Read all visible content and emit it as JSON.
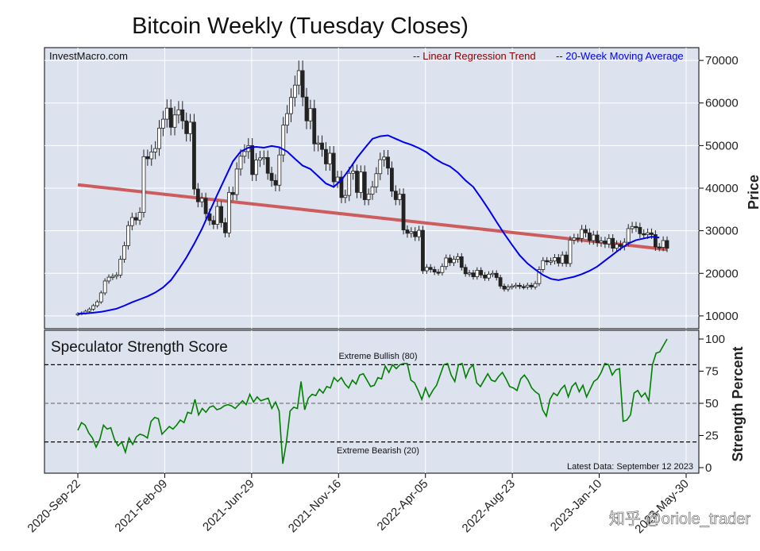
{
  "chart_data": [
    {
      "type": "candlestick",
      "title": "Bitcoin Weekly (Tuesday Closes)",
      "source_label": "InvestMacro.com",
      "ylabel": "Price",
      "ylim": [
        7000,
        73000
      ],
      "yticks": [
        10000,
        20000,
        30000,
        40000,
        50000,
        60000,
        70000
      ],
      "ytick_labels": [
        "10000",
        "20000",
        "30000",
        "40000",
        "50000",
        "60000",
        "70000"
      ],
      "grid": true,
      "legend": {
        "position": "top-right",
        "entries": [
          {
            "label": "-- Linear Regression Trend",
            "color": "#8b0000"
          },
          {
            "label": "-- 20-Week Moving Average",
            "color": "#0000ee"
          }
        ]
      },
      "regression_line": {
        "start": 40800,
        "end": 25600,
        "color": "#cd5c5c"
      },
      "closes": [
        10500,
        10700,
        11100,
        11600,
        12400,
        13300,
        15400,
        18200,
        19100,
        19300,
        19600,
        23300,
        26500,
        31200,
        33100,
        32500,
        34300,
        47400,
        46900,
        48500,
        49300,
        54100,
        56200,
        58800,
        54300,
        57200,
        58400,
        55800,
        52800,
        55500,
        39800,
        36800,
        37600,
        34000,
        32400,
        31500,
        35700,
        31900,
        29500,
        39000,
        38500,
        44500,
        47500,
        48600,
        50000,
        43200,
        46600,
        47100,
        47200,
        43500,
        41800,
        40700,
        47800,
        54800,
        57500,
        61300,
        64200,
        67600,
        61400,
        55800,
        58700,
        50400,
        50600,
        49100,
        45700,
        48200,
        41500,
        42600,
        37800,
        38300,
        43500,
        44000,
        39000,
        43800,
        37300,
        38600,
        40300,
        43400,
        46700,
        47300,
        44700,
        39300,
        37300,
        38600,
        30200,
        29400,
        29800,
        28600,
        30100,
        20600,
        21400,
        20900,
        20300,
        20200,
        21600,
        23600,
        22500,
        23300,
        23900,
        21400,
        19900,
        20100,
        19200,
        20700,
        19600,
        18900,
        19800,
        20000,
        19000,
        17000,
        16300,
        16800,
        17000,
        17200,
        16900,
        16800,
        17200,
        16800,
        17600,
        20900,
        23000,
        22700,
        22900,
        23700,
        22400,
        24300,
        22300,
        27800,
        28300,
        28200,
        30300,
        29500,
        27700,
        29000,
        27200,
        27600,
        26900,
        28200,
        25900,
        26800,
        26300,
        27300,
        30500,
        31000,
        30800,
        29300,
        29100,
        29500,
        29100,
        26200,
        26100,
        27700,
        25900
      ],
      "moving_average": [
        10500,
        10600,
        10750,
        10950,
        11300,
        11700,
        12400,
        13200,
        13900,
        14600,
        15500,
        16700,
        18400,
        20900,
        23700,
        26900,
        30400,
        34500,
        38500,
        42400,
        46300,
        48600,
        49500,
        49700,
        49500,
        49900,
        49600,
        48600,
        46900,
        45300,
        44500,
        42800,
        41100,
        40300,
        41900,
        44400,
        47100,
        49400,
        51600,
        52200,
        52400,
        51600,
        50800,
        50200,
        49400,
        48400,
        47000,
        45900,
        45100,
        43700,
        41800,
        40300,
        37700,
        35000,
        32100,
        29300,
        26700,
        24200,
        22300,
        20900,
        19600,
        18700,
        18400,
        18800,
        19200,
        19800,
        20600,
        21600,
        23000,
        24400,
        25800,
        27000,
        27800,
        28200,
        28600,
        28400
      ],
      "ma_start_index": 0,
      "ma_step": 2
    },
    {
      "type": "line",
      "title": "Speculator Strength Score",
      "ylabel": "Strength Percent",
      "ylim": [
        0,
        100
      ],
      "yticks": [
        0,
        25,
        50,
        75,
        100
      ],
      "ytick_labels": [
        "0",
        "25",
        "50",
        "75",
        "100"
      ],
      "reference_lines": [
        {
          "value": 80,
          "label": "Extreme Bullish (80)",
          "style": "dashed",
          "color": "#000000"
        },
        {
          "value": 50,
          "label": "",
          "style": "dashed",
          "color": "#777777"
        },
        {
          "value": 20,
          "label": "Extreme Bearish (20)",
          "style": "dashed",
          "color": "#000000"
        }
      ],
      "footnote": "Latest Data: September 12 2023",
      "series": [
        {
          "color": "#008000",
          "values": [
            29,
            35,
            33,
            27,
            23,
            16,
            22,
            33,
            30,
            31,
            22,
            17,
            20,
            12,
            23,
            18,
            24,
            26,
            25,
            23,
            36,
            39,
            38,
            26,
            29,
            32,
            30,
            33,
            37,
            35,
            43,
            42,
            53,
            41,
            46,
            43,
            47,
            48,
            45,
            46,
            48,
            49,
            48,
            46,
            49,
            52,
            49,
            57,
            51,
            55,
            52,
            53,
            54,
            46,
            51,
            44,
            3,
            20,
            44,
            47,
            46,
            67,
            45,
            54,
            57,
            56,
            61,
            58,
            63,
            62,
            70,
            67,
            70,
            65,
            62,
            68,
            65,
            72,
            73,
            68,
            63,
            64,
            70,
            69,
            79,
            74,
            80,
            77,
            80,
            81,
            81,
            68,
            66,
            60,
            53,
            62,
            55,
            60,
            64,
            72,
            80,
            81,
            72,
            67,
            80,
            81,
            70,
            77,
            80,
            66,
            63,
            68,
            73,
            68,
            67,
            71,
            74,
            69,
            63,
            62,
            60,
            69,
            72,
            68,
            62,
            59,
            57,
            45,
            40,
            53,
            58,
            56,
            61,
            64,
            55,
            63,
            66,
            59,
            64,
            55,
            61,
            67,
            69,
            74,
            81,
            80,
            72,
            76,
            77,
            36,
            37,
            41,
            58,
            60,
            55,
            58,
            52,
            80,
            89,
            90,
            95,
            100
          ]
        }
      ]
    }
  ],
  "x_axis": {
    "tick_labels": [
      "2020-Sep-22",
      "2021-Feb-09",
      "2021-Jun-29",
      "2021-Nov-16",
      "2022-Apr-05",
      "2022-Aug-23",
      "2023-Jan-10",
      "2023-May-30"
    ]
  },
  "watermark": "知乎 @oriole_trader"
}
